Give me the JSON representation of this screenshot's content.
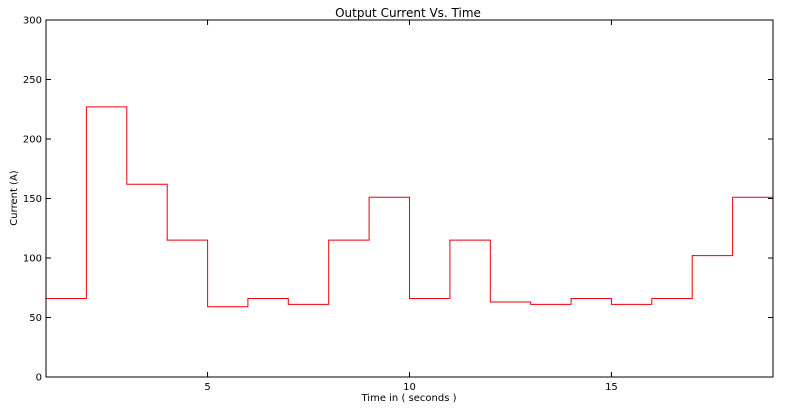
{
  "chart_data": {
    "type": "line",
    "style": "step",
    "title": "Output Current Vs. Time",
    "xlabel": "Time in ( seconds )",
    "ylabel": "Current (A)",
    "xlim": [
      1,
      19
    ],
    "ylim": [
      0,
      300
    ],
    "xticks": [
      5,
      10,
      15
    ],
    "yticks": [
      0,
      50,
      100,
      150,
      200,
      250,
      300
    ],
    "grid": false,
    "colors": {
      "line": "#e8000b",
      "axes": "#000000",
      "background": "#ffffff"
    },
    "series": [
      {
        "x": [
          1,
          2,
          3,
          4,
          5,
          6,
          7,
          8,
          9,
          10,
          11,
          12,
          13,
          14,
          15,
          16,
          17,
          18,
          19
        ],
        "values": [
          66,
          227,
          162,
          115,
          59,
          66,
          61,
          115,
          151,
          66,
          115,
          63,
          61,
          66,
          61,
          66,
          102,
          151,
          149
        ]
      }
    ]
  }
}
